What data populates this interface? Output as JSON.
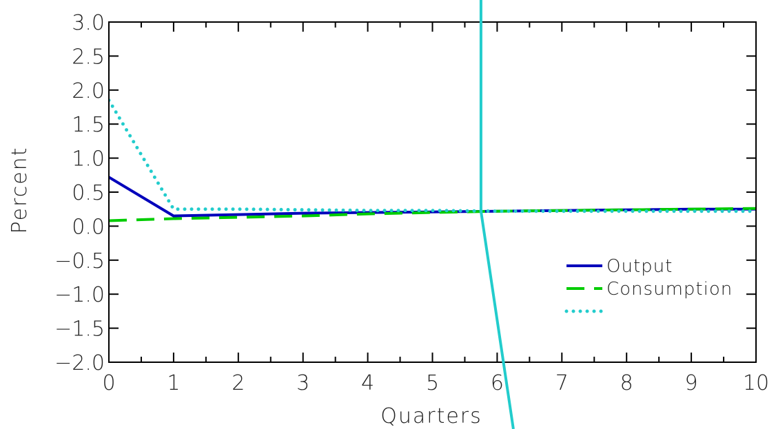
{
  "chart_data": {
    "type": "line",
    "title": "",
    "xlabel": "Quarters",
    "ylabel": "Percent",
    "xlim": [
      0,
      10
    ],
    "ylim": [
      -2.0,
      3.0
    ],
    "xticks": [
      0,
      1,
      2,
      3,
      4,
      5,
      6,
      7,
      8,
      9,
      10
    ],
    "xtick_labels": [
      "0",
      "1",
      "2",
      "3",
      "4",
      "5",
      "6",
      "7",
      "8",
      "9",
      "10"
    ],
    "yticks": [
      3.0,
      2.5,
      2.0,
      1.5,
      1.0,
      0.5,
      0.0,
      -0.5,
      -1.0,
      -1.5,
      -2.0
    ],
    "ytick_labels": [
      "3.0",
      "2.5",
      "2.0",
      "1.5",
      "1.0",
      "0.5",
      "0.0",
      "−0.5",
      "−1.0",
      "−1.5",
      "−2.0"
    ],
    "grid": false,
    "legend_position": "right",
    "series": [
      {
        "name": "Output",
        "style": "solid",
        "color": "#0000bb",
        "x": [
          0,
          1,
          2,
          3,
          4,
          5,
          6,
          7,
          8,
          9,
          10
        ],
        "y": [
          0.72,
          0.15,
          0.17,
          0.19,
          0.2,
          0.21,
          0.22,
          0.23,
          0.24,
          0.25,
          0.25
        ]
      },
      {
        "name": "Consumption",
        "style": "dashed",
        "color": "#00cc00",
        "x": [
          0,
          1,
          2,
          3,
          4,
          5,
          6,
          7,
          8,
          9,
          10
        ],
        "y": [
          0.08,
          0.11,
          0.13,
          0.15,
          0.18,
          0.2,
          0.22,
          0.23,
          0.24,
          0.25,
          0.26
        ]
      },
      {
        "style": "dotted",
        "color": "#22cccc",
        "x": [
          0,
          1,
          2,
          3,
          4,
          5,
          6,
          7,
          8,
          9,
          10
        ],
        "y": [
          1.85,
          0.25,
          0.25,
          0.24,
          0.23,
          0.23,
          0.22,
          0.22,
          0.22,
          0.22,
          0.22
        ]
      }
    ],
    "annotation_line": {
      "color": "#22cccc",
      "x": [
        5.75,
        5.75,
        6.25
      ],
      "y": [
        3.8,
        0.22,
        -3.0
      ]
    }
  }
}
